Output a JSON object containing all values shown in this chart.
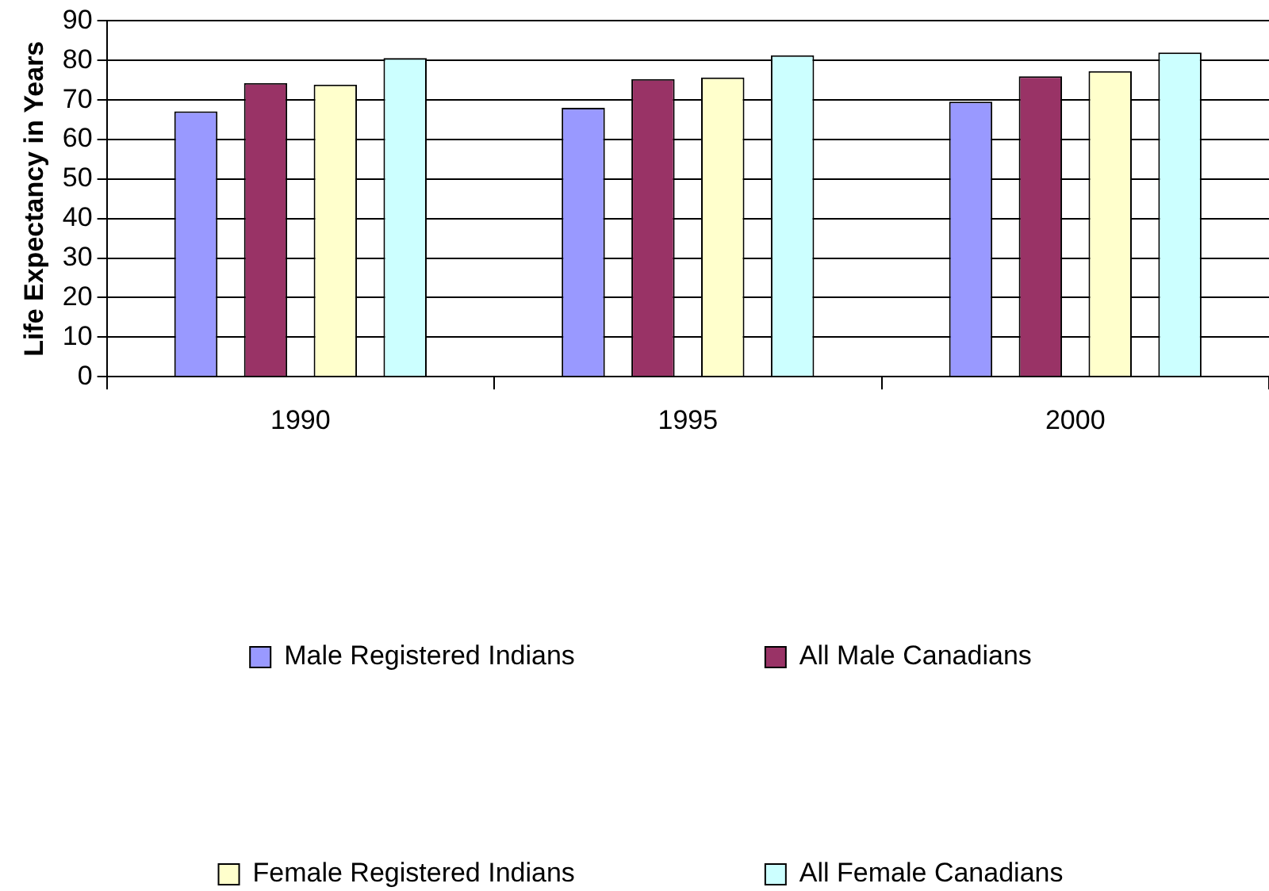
{
  "chart_data": {
    "type": "bar",
    "ylabel": "Life Expectancy in Years",
    "categories": [
      "1990",
      "1995",
      "2000"
    ],
    "series": [
      {
        "name": "Male Registered Indians",
        "color": "#9999ff",
        "values": [
          67.1,
          68,
          69.6
        ]
      },
      {
        "name": "All Male Canadians",
        "color": "#993366",
        "values": [
          74.3,
          75.3,
          76
        ]
      },
      {
        "name": "Female Registered Indians",
        "color": "#ffffcc",
        "values": [
          73.9,
          75.7,
          77.3
        ]
      },
      {
        "name": "All Female Canadians",
        "color": "#ccffff",
        "values": [
          80.6,
          81.3,
          82
        ]
      }
    ],
    "ylim": [
      0,
      90
    ],
    "yticks": [
      0,
      10,
      20,
      30,
      40,
      50,
      60,
      70,
      80,
      90
    ],
    "grid": "y",
    "legend": "bottom"
  }
}
